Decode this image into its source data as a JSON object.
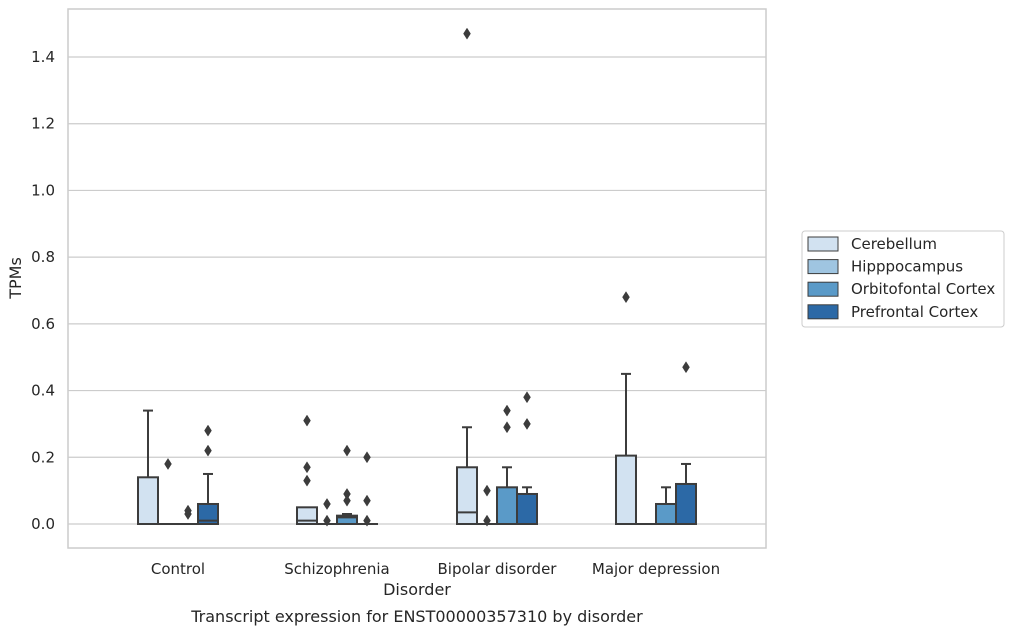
{
  "chart_data": {
    "type": "box",
    "title": "Transcript expression for ENST00000357310 by disorder",
    "xlabel": "Disorder",
    "ylabel": "TPMs",
    "ylim": [
      -0.07,
      1.545
    ],
    "yticks": [
      0.0,
      0.2,
      0.4,
      0.6,
      0.8,
      1.0,
      1.2,
      1.4
    ],
    "ytick_labels": [
      "0.0",
      "0.2",
      "0.4",
      "0.6",
      "0.8",
      "1.0",
      "1.2",
      "1.4"
    ],
    "grid": "horizontal",
    "legend_position": "right",
    "categories": [
      "Control",
      "Schizophrenia",
      "Bipolar disorder",
      "Major depression"
    ],
    "series": [
      {
        "name": "Cerebellum",
        "color": "#d2e2f1",
        "boxes": [
          {
            "q1": 0.0,
            "median": 0.0,
            "q3": 0.14,
            "whisker_low": 0.0,
            "whisker_high": 0.34,
            "outliers": []
          },
          {
            "q1": 0.0,
            "median": 0.01,
            "q3": 0.05,
            "whisker_low": 0.0,
            "whisker_high": 0.05,
            "outliers": [
              0.13,
              0.17,
              0.31
            ]
          },
          {
            "q1": 0.0,
            "median": 0.035,
            "q3": 0.17,
            "whisker_low": 0.0,
            "whisker_high": 0.29,
            "outliers": [
              1.47
            ]
          },
          {
            "q1": 0.0,
            "median": 0.0,
            "q3": 0.205,
            "whisker_low": 0.0,
            "whisker_high": 0.45,
            "outliers": [
              0.68
            ]
          }
        ]
      },
      {
        "name": "Hipppocampus",
        "color": "#9fc5e1",
        "boxes": [
          {
            "q1": 0.0,
            "median": 0.0,
            "q3": 0.0,
            "whisker_low": 0.0,
            "whisker_high": 0.0,
            "outliers": [
              0.18
            ]
          },
          {
            "q1": 0.0,
            "median": 0.0,
            "q3": 0.0,
            "whisker_low": 0.0,
            "whisker_high": 0.0,
            "outliers": [
              0.01,
              0.06
            ]
          },
          {
            "q1": 0.0,
            "median": 0.0,
            "q3": 0.0,
            "whisker_low": 0.0,
            "whisker_high": 0.0,
            "outliers": [
              0.01,
              0.1
            ]
          },
          {
            "q1": 0.0,
            "median": 0.0,
            "q3": 0.0,
            "whisker_low": 0.0,
            "whisker_high": 0.0,
            "outliers": []
          }
        ]
      },
      {
        "name": "Orbitofontal Cortex",
        "color": "#5a9ac8",
        "boxes": [
          {
            "q1": 0.0,
            "median": 0.0,
            "q3": 0.0,
            "whisker_low": 0.0,
            "whisker_high": 0.0,
            "outliers": [
              0.03,
              0.04
            ]
          },
          {
            "q1": 0.0,
            "median": 0.02,
            "q3": 0.025,
            "whisker_low": 0.0,
            "whisker_high": 0.03,
            "outliers": [
              0.07,
              0.09,
              0.22
            ]
          },
          {
            "q1": 0.0,
            "median": 0.0,
            "q3": 0.11,
            "whisker_low": 0.0,
            "whisker_high": 0.17,
            "outliers": [
              0.29,
              0.34
            ]
          },
          {
            "q1": 0.0,
            "median": 0.0,
            "q3": 0.06,
            "whisker_low": 0.0,
            "whisker_high": 0.11,
            "outliers": []
          }
        ]
      },
      {
        "name": "Prefrontal Cortex",
        "color": "#2c69a6",
        "boxes": [
          {
            "q1": 0.0,
            "median": 0.01,
            "q3": 0.06,
            "whisker_low": 0.0,
            "whisker_high": 0.15,
            "outliers": [
              0.22,
              0.28
            ]
          },
          {
            "q1": 0.0,
            "median": 0.0,
            "q3": 0.0,
            "whisker_low": 0.0,
            "whisker_high": 0.0,
            "outliers": [
              0.01,
              0.07,
              0.2
            ]
          },
          {
            "q1": 0.0,
            "median": 0.0,
            "q3": 0.09,
            "whisker_low": 0.0,
            "whisker_high": 0.11,
            "outliers": [
              0.3,
              0.38
            ]
          },
          {
            "q1": 0.0,
            "median": 0.0,
            "q3": 0.12,
            "whisker_low": 0.0,
            "whisker_high": 0.18,
            "outliers": [
              0.47
            ]
          }
        ]
      }
    ]
  }
}
